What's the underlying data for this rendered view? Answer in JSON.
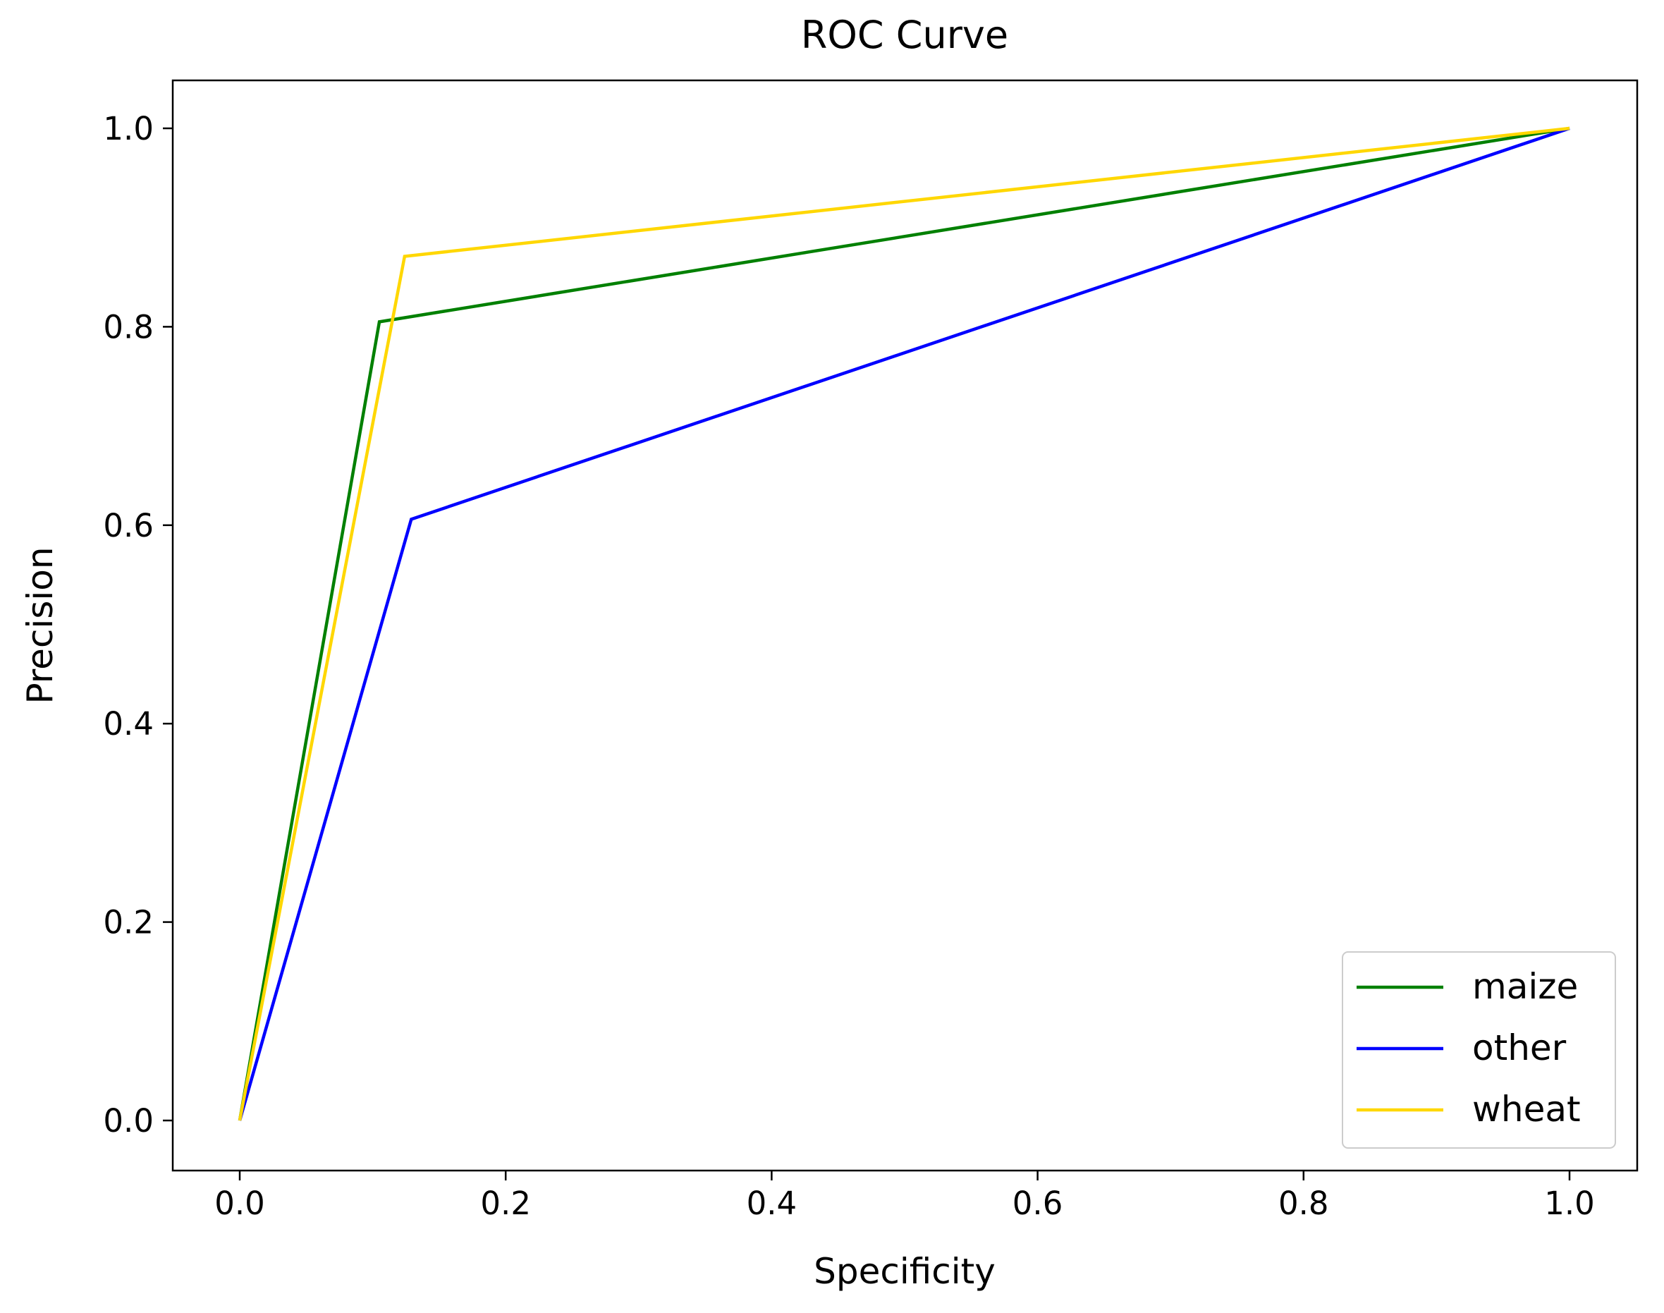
{
  "chart_data": {
    "type": "line",
    "title": "ROC Curve",
    "xlabel": "Specificity",
    "ylabel": "Precision",
    "xlim": [
      -0.05,
      1.05
    ],
    "ylim": [
      -0.05,
      1.05
    ],
    "xticks": [
      "0.0",
      "0.2",
      "0.4",
      "0.6",
      "0.8",
      "1.0"
    ],
    "yticks": [
      "0.0",
      "0.2",
      "0.4",
      "0.6",
      "0.8",
      "1.0"
    ],
    "grid": false,
    "legend_position": "lower-right",
    "series": [
      {
        "name": "maize",
        "color": "#008000",
        "x": [
          0,
          0.105,
          1
        ],
        "y": [
          0,
          0.805,
          1
        ]
      },
      {
        "name": "other",
        "color": "#0000ff",
        "x": [
          0,
          0.129,
          1
        ],
        "y": [
          0,
          0.606,
          1
        ]
      },
      {
        "name": "wheat",
        "color": "#ffd700",
        "x": [
          0,
          0.124,
          1
        ],
        "y": [
          0,
          0.871,
          1
        ]
      }
    ]
  }
}
